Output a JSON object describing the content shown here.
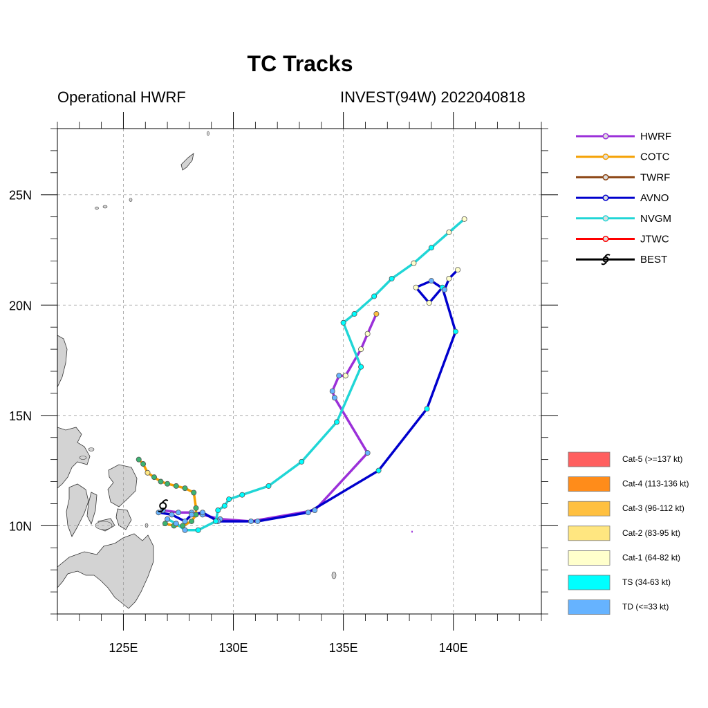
{
  "title": "TC Tracks",
  "subtitle_left": "Operational HWRF",
  "subtitle_right": "INVEST(94W) 2022040818",
  "map": {
    "lon_range": [
      122,
      144
    ],
    "lat_range": [
      6,
      28
    ],
    "x_ticks": [
      {
        "value": 125,
        "label": "125E"
      },
      {
        "value": 130,
        "label": "130E"
      },
      {
        "value": 135,
        "label": "135E"
      },
      {
        "value": 140,
        "label": "140E"
      }
    ],
    "y_ticks": [
      {
        "value": 10,
        "label": "10N"
      },
      {
        "value": 15,
        "label": "15N"
      },
      {
        "value": 20,
        "label": "20N"
      },
      {
        "value": 25,
        "label": "25N"
      }
    ],
    "grid": true,
    "land_color": "#d3d3d3"
  },
  "legend": {
    "models": [
      {
        "name": "HWRF",
        "color": "#9b30d9"
      },
      {
        "name": "COTC",
        "color": "#f5a000"
      },
      {
        "name": "TWRF",
        "color": "#8b4513"
      },
      {
        "name": "AVNO",
        "color": "#0000cd"
      },
      {
        "name": "NVGM",
        "color": "#20d6d6"
      },
      {
        "name": "JTWC",
        "color": "#ff0000"
      },
      {
        "name": "BEST",
        "color": "#000000"
      }
    ],
    "categories": [
      {
        "label": "Cat-5 (>=137 kt)",
        "color": "#ff5f5f"
      },
      {
        "label": "Cat-4 (113-136 kt)",
        "color": "#ff8c1a"
      },
      {
        "label": "Cat-3 (96-112 kt)",
        "color": "#ffc040"
      },
      {
        "label": "Cat-2 (83-95 kt)",
        "color": "#ffe680"
      },
      {
        "label": "Cat-1 (64-82 kt)",
        "color": "#ffffcc"
      },
      {
        "label": "TS (34-63 kt)",
        "color": "#00ffff"
      },
      {
        "label": "TD (<=33 kt)",
        "color": "#66b3ff"
      }
    ]
  },
  "chart_data": {
    "type": "map",
    "tracks": [
      {
        "name": "HWRF",
        "color": "#9b30d9",
        "points": [
          [
            126.8,
            10.7
          ],
          [
            127.5,
            10.6
          ],
          [
            128.1,
            10.6
          ],
          [
            128.6,
            10.5
          ],
          [
            129.4,
            10.3
          ],
          [
            130.8,
            10.2
          ],
          [
            133.7,
            10.7
          ],
          [
            136.1,
            13.3
          ],
          [
            134.6,
            15.8
          ],
          [
            134.5,
            16.1
          ],
          [
            134.8,
            16.8
          ],
          [
            135.1,
            16.8
          ],
          [
            135.8,
            18.0
          ],
          [
            136.1,
            18.7
          ],
          [
            136.5,
            19.6
          ]
        ],
        "point_colors": [
          "#66b3ff",
          "#66b3ff",
          "#66b3ff",
          "#66b3ff",
          "#66b3ff",
          "#66b3ff",
          "#66b3ff",
          "#66b3ff",
          "#66b3ff",
          "#66b3ff",
          "#66b3ff",
          "#ffffcc",
          "#ffffcc",
          "#ffffcc",
          "#ffc040"
        ]
      },
      {
        "name": "COTC",
        "color": "#f5a000",
        "points": [
          [
            125.7,
            13.0
          ],
          [
            125.9,
            12.8
          ],
          [
            126.1,
            12.4
          ],
          [
            126.4,
            12.2
          ],
          [
            126.7,
            12.0
          ],
          [
            127.0,
            11.9
          ],
          [
            127.4,
            11.8
          ],
          [
            127.8,
            11.7
          ],
          [
            128.2,
            11.5
          ],
          [
            128.3,
            10.8
          ],
          [
            128.3,
            10.5
          ],
          [
            128.1,
            10.2
          ],
          [
            127.7,
            10.0
          ],
          [
            127.3,
            10.0
          ],
          [
            126.9,
            10.1
          ]
        ],
        "point_colors": [
          "#3cb371",
          "#3cb371",
          "#ffe680",
          "#3cb371",
          "#3cb371",
          "#3cb371",
          "#3cb371",
          "#3cb371",
          "#3cb371",
          "#3cb371",
          "#3cb371",
          "#3cb371",
          "#3cb371",
          "#3cb371",
          "#3cb371"
        ]
      },
      {
        "name": "AVNO",
        "color": "#0000cd",
        "points": [
          [
            126.6,
            10.6
          ],
          [
            127.2,
            10.5
          ],
          [
            127.8,
            10.2
          ],
          [
            128.1,
            10.5
          ],
          [
            128.6,
            10.6
          ],
          [
            129.3,
            10.2
          ],
          [
            131.1,
            10.2
          ],
          [
            133.4,
            10.6
          ],
          [
            136.6,
            12.5
          ],
          [
            138.8,
            15.3
          ],
          [
            140.1,
            18.8
          ],
          [
            139.5,
            20.8
          ],
          [
            138.9,
            20.1
          ],
          [
            138.3,
            20.8
          ],
          [
            139.0,
            21.1
          ],
          [
            139.6,
            20.7
          ],
          [
            139.8,
            21.2
          ],
          [
            140.2,
            21.6
          ]
        ],
        "point_colors": [
          "#66b3ff",
          "#66b3ff",
          "#66b3ff",
          "#66b3ff",
          "#66b3ff",
          "#66b3ff",
          "#66b3ff",
          "#66b3ff",
          "#00ffff",
          "#00ffff",
          "#00ffff",
          "#00ffff",
          "#ffffcc",
          "#ffffcc",
          "#66b3ff",
          "#66b3ff",
          "#ffffcc",
          "#ffffcc"
        ]
      },
      {
        "name": "NVGM",
        "color": "#20d6d6",
        "points": [
          [
            127.0,
            10.3
          ],
          [
            127.4,
            10.1
          ],
          [
            127.8,
            9.8
          ],
          [
            128.4,
            9.8
          ],
          [
            129.2,
            10.2
          ],
          [
            129.3,
            10.7
          ],
          [
            129.6,
            10.9
          ],
          [
            129.8,
            11.2
          ],
          [
            130.4,
            11.4
          ],
          [
            131.6,
            11.8
          ],
          [
            133.1,
            12.9
          ],
          [
            134.7,
            14.7
          ],
          [
            135.8,
            17.2
          ],
          [
            135.0,
            19.2
          ],
          [
            135.5,
            19.6
          ],
          [
            136.4,
            20.4
          ],
          [
            137.2,
            21.2
          ],
          [
            138.2,
            21.9
          ],
          [
            139.0,
            22.6
          ],
          [
            139.8,
            23.3
          ],
          [
            140.5,
            23.9
          ]
        ],
        "point_colors": [
          "#66b3ff",
          "#66b3ff",
          "#66b3ff",
          "#00ffff",
          "#00ffff",
          "#00ffff",
          "#00ffff",
          "#00ffff",
          "#00ffff",
          "#00ffff",
          "#00ffff",
          "#00ffff",
          "#00ffff",
          "#00ffff",
          "#00ffff",
          "#00ffff",
          "#00ffff",
          "#ffffcc",
          "#00ffff",
          "#ffffcc",
          "#ffffcc"
        ]
      }
    ],
    "best_track": {
      "name": "BEST",
      "position": [
        126.8,
        10.9
      ]
    }
  }
}
